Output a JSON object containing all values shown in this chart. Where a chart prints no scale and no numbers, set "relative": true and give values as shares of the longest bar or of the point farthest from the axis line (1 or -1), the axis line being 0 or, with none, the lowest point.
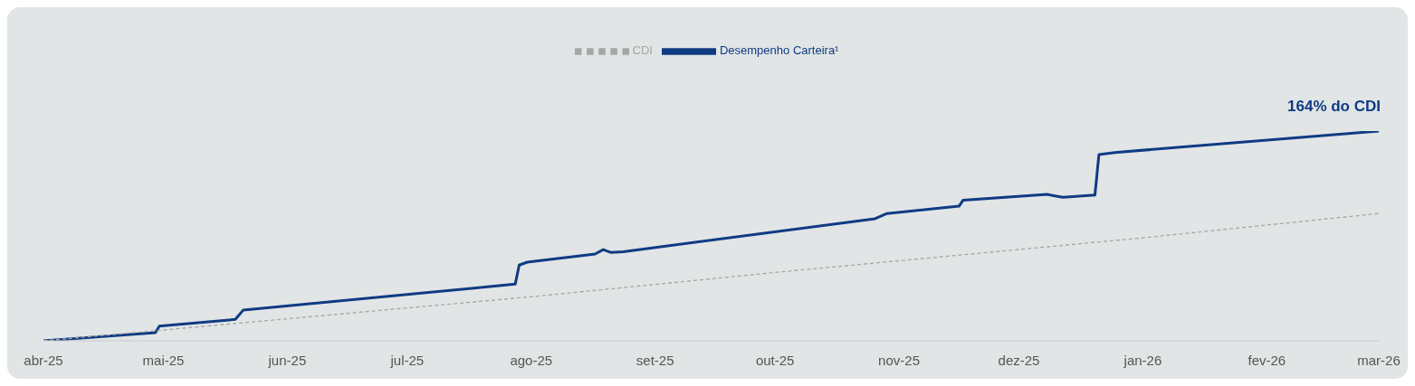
{
  "chart_data": {
    "type": "line",
    "relative": true,
    "legend": "top",
    "xlim": [
      "2025-04-01",
      "2026-03-01"
    ],
    "xticks": [
      {
        "value": "2025-04-01",
        "label": "abr-25"
      },
      {
        "value": "2025-05-01",
        "label": "mai-25"
      },
      {
        "value": "2025-06-01",
        "label": "jun-25"
      },
      {
        "value": "2025-07-01",
        "label": "jul-25"
      },
      {
        "value": "2025-08-01",
        "label": "ago-25"
      },
      {
        "value": "2025-09-01",
        "label": "set-25"
      },
      {
        "value": "2025-10-01",
        "label": "out-25"
      },
      {
        "value": "2025-11-01",
        "label": "nov-25"
      },
      {
        "value": "2025-12-01",
        "label": "dez-25"
      },
      {
        "value": "2026-01-01",
        "label": "jan-26"
      },
      {
        "value": "2026-02-01",
        "label": "fev-26"
      },
      {
        "value": "2026-03-01",
        "label": "mar-26"
      }
    ],
    "series": [
      {
        "name": "Desempenho Carteira¹",
        "color": "#0f3b82",
        "line_style": "solid",
        "x": [
          "2025-04-01",
          "2025-04-29",
          "2025-04-30",
          "2025-05-19",
          "2025-05-21",
          "2025-07-28",
          "2025-07-29",
          "2025-07-31",
          "2025-08-17",
          "2025-08-19",
          "2025-08-21",
          "2025-08-24",
          "2025-10-26",
          "2025-10-29",
          "2025-11-16",
          "2025-11-17",
          "2025-12-08",
          "2025-12-10",
          "2025-12-12",
          "2025-12-20",
          "2025-12-21",
          "2025-12-25",
          "2026-03-01"
        ],
        "values": [
          0,
          0.039,
          0.07,
          0.102,
          0.147,
          0.27,
          0.361,
          0.375,
          0.414,
          0.435,
          0.421,
          0.425,
          0.582,
          0.607,
          0.642,
          0.67,
          0.698,
          0.691,
          0.684,
          0.695,
          0.888,
          0.898,
          1
        ]
      },
      {
        "name": "CDI",
        "color": "#a6a6a6",
        "line_style": "dashed",
        "x": [
          "2025-04-01",
          "2025-08-01",
          "2025-10-01",
          "2026-01-01",
          "2026-03-01"
        ],
        "values": [
          0,
          0.21,
          0.326,
          0.491,
          0.607
        ]
      }
    ],
    "annotations": [
      {
        "text": "164% do CDI",
        "x": "2026-03-01",
        "y": 1
      }
    ]
  }
}
